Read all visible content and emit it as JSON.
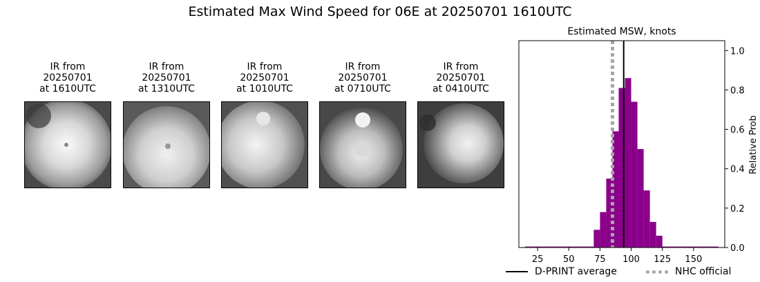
{
  "suptitle": "Estimated Max Wind Speed for 06E at 20250701 1610UTC",
  "thumbnails": [
    {
      "line1": "IR from",
      "line2": "20250701",
      "line3": "at 1610UTC"
    },
    {
      "line1": "IR from",
      "line2": "20250701",
      "line3": "at 1310UTC"
    },
    {
      "line1": "IR from",
      "line2": "20250701",
      "line3": "at 1010UTC"
    },
    {
      "line1": "IR from",
      "line2": "20250701",
      "line3": "at 0710UTC"
    },
    {
      "line1": "IR from",
      "line2": "20250701",
      "line3": "at 0410UTC"
    }
  ],
  "chart_data": {
    "type": "bar",
    "title": "Estimated MSW, knots",
    "xlabel": "",
    "ylabel": "Relative Prob",
    "xlim": [
      10,
      175
    ],
    "ylim": [
      0,
      1.05
    ],
    "xticks": [
      25,
      50,
      75,
      100,
      125,
      150
    ],
    "yticks": [
      0.0,
      0.2,
      0.4,
      0.6,
      0.8,
      1.0
    ],
    "ytick_labels": [
      "0.0",
      "0.2",
      "0.4",
      "0.6",
      "0.8",
      "1.0"
    ],
    "bar_color": "#8b008b",
    "bins": [
      {
        "x0": 15,
        "x1": 70,
        "value": 0.005
      },
      {
        "x0": 70,
        "x1": 75,
        "value": 0.09
      },
      {
        "x0": 75,
        "x1": 80,
        "value": 0.18
      },
      {
        "x0": 80,
        "x1": 85,
        "value": 0.35
      },
      {
        "x0": 85,
        "x1": 90,
        "value": 0.59
      },
      {
        "x0": 90,
        "x1": 95,
        "value": 0.81
      },
      {
        "x0": 95,
        "x1": 100,
        "value": 0.86
      },
      {
        "x0": 100,
        "x1": 105,
        "value": 0.74
      },
      {
        "x0": 105,
        "x1": 110,
        "value": 0.5
      },
      {
        "x0": 110,
        "x1": 115,
        "value": 0.29
      },
      {
        "x0": 115,
        "x1": 120,
        "value": 0.13
      },
      {
        "x0": 120,
        "x1": 125,
        "value": 0.06
      },
      {
        "x0": 125,
        "x1": 170,
        "value": 0.005
      }
    ],
    "dprint_average": 94,
    "nhc_official": 85,
    "legend": [
      {
        "label": "D-PRINT average",
        "style": "solid",
        "color": "#000000"
      },
      {
        "label": "NHC official",
        "style": "dotted",
        "color": "#a6a6a6"
      }
    ],
    "legend_position": "bottom"
  }
}
